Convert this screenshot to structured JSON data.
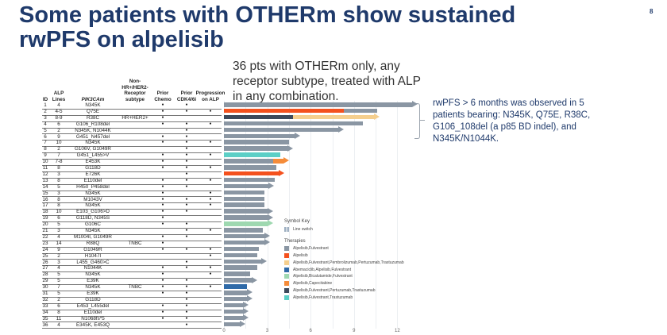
{
  "title": "Some patients with OTHERm show sustained rwPFS on alpelisib",
  "page_number": "8",
  "note": "36 pts with OTHERm only, any receptor subtype, treated with ALP in any combination.",
  "side_text": "rwPFS > 6 months was observed in 5 patients bearing: N345K, Q75E, R38C, G106_108del (a p85 BD indel), and N345K/N1044K.",
  "table": {
    "headers": [
      "ID",
      "ALP Lines",
      "PIK3CAm",
      "Non-HR+/HER2- Receptor subtype",
      "Prior Chemo",
      "Prior CDK4/6i",
      "Progression on ALP"
    ],
    "dot": "●",
    "rows": [
      {
        "id": "1",
        "lines": "4",
        "mut": "N345K",
        "rec": "",
        "chemo": true,
        "cdk": true,
        "prog": false
      },
      {
        "id": "2",
        "lines": "4-5",
        "mut": "Q75E",
        "rec": "",
        "chemo": true,
        "cdk": true,
        "prog": true
      },
      {
        "id": "3",
        "lines": "8-9",
        "mut": "R38C",
        "rec": "HR+HER2+",
        "chemo": true,
        "cdk": false,
        "prog": false
      },
      {
        "id": "4",
        "lines": "6",
        "mut": "G106_R108del",
        "rec": "",
        "chemo": true,
        "cdk": true,
        "prog": true
      },
      {
        "id": "5",
        "lines": "2",
        "mut": "N345K, N1044K",
        "rec": "",
        "chemo": false,
        "cdk": true,
        "prog": false
      },
      {
        "id": "6",
        "lines": "9",
        "mut": "G451_N457del",
        "rec": "",
        "chemo": true,
        "cdk": true,
        "prog": false
      },
      {
        "id": "7",
        "lines": "10",
        "mut": "N345K",
        "rec": "",
        "chemo": true,
        "cdk": true,
        "prog": true
      },
      {
        "id": "8",
        "lines": "2",
        "mut": "G106V, G1049R",
        "rec": "",
        "chemo": false,
        "cdk": true,
        "prog": false
      },
      {
        "id": "9",
        "lines": "7",
        "mut": "G451_L455>V",
        "rec": "",
        "chemo": true,
        "cdk": true,
        "prog": true
      },
      {
        "id": "10",
        "lines": "7-8",
        "mut": "E453K",
        "rec": "",
        "chemo": true,
        "cdk": true,
        "prog": false
      },
      {
        "id": "11",
        "lines": "8",
        "mut": "G118D",
        "rec": "",
        "chemo": true,
        "cdk": true,
        "prog": true
      },
      {
        "id": "12",
        "lines": "3",
        "mut": "E726K",
        "rec": "",
        "chemo": false,
        "cdk": true,
        "prog": false
      },
      {
        "id": "13",
        "lines": "8",
        "mut": "E110del",
        "rec": "",
        "chemo": true,
        "cdk": true,
        "prog": true
      },
      {
        "id": "14",
        "lines": "5",
        "mut": "H450_P458del",
        "rec": "",
        "chemo": true,
        "cdk": true,
        "prog": false
      },
      {
        "id": "15",
        "lines": "3",
        "mut": "N345K",
        "rec": "",
        "chemo": true,
        "cdk": false,
        "prog": true
      },
      {
        "id": "16",
        "lines": "8",
        "mut": "M1043V",
        "rec": "",
        "chemo": true,
        "cdk": true,
        "prog": true
      },
      {
        "id": "17",
        "lines": "8",
        "mut": "N345K",
        "rec": "",
        "chemo": true,
        "cdk": true,
        "prog": true
      },
      {
        "id": "18",
        "lines": "10",
        "mut": "E103_G106>D",
        "rec": "",
        "chemo": true,
        "cdk": true,
        "prog": false
      },
      {
        "id": "19",
        "lines": "6",
        "mut": "G118D, N345S",
        "rec": "",
        "chemo": true,
        "cdk": false,
        "prog": false
      },
      {
        "id": "20",
        "lines": "5",
        "mut": "G106C",
        "rec": "",
        "chemo": true,
        "cdk": true,
        "prog": false
      },
      {
        "id": "21",
        "lines": "3",
        "mut": "N345K",
        "rec": "",
        "chemo": false,
        "cdk": true,
        "prog": true
      },
      {
        "id": "22",
        "lines": "4",
        "mut": "M1004I, G1049R",
        "rec": "",
        "chemo": true,
        "cdk": true,
        "prog": false
      },
      {
        "id": "23",
        "lines": "14",
        "mut": "R88Q",
        "rec": "TNBC",
        "chemo": true,
        "cdk": false,
        "prog": false
      },
      {
        "id": "24",
        "lines": "9",
        "mut": "G1049R",
        "rec": "",
        "chemo": true,
        "cdk": true,
        "prog": true
      },
      {
        "id": "25",
        "lines": "2",
        "mut": "H1047I",
        "rec": "",
        "chemo": false,
        "cdk": false,
        "prog": true
      },
      {
        "id": "26",
        "lines": "3",
        "mut": "L455_G460>C",
        "rec": "",
        "chemo": false,
        "cdk": true,
        "prog": false
      },
      {
        "id": "27",
        "lines": "4",
        "mut": "N1044K",
        "rec": "",
        "chemo": true,
        "cdk": true,
        "prog": true
      },
      {
        "id": "28",
        "lines": "5",
        "mut": "N345K",
        "rec": "",
        "chemo": true,
        "cdk": false,
        "prog": true
      },
      {
        "id": "29",
        "lines": "5",
        "mut": "E39K",
        "rec": "",
        "chemo": true,
        "cdk": true,
        "prog": false
      },
      {
        "id": "30",
        "lines": "7",
        "mut": "N345K",
        "rec": "TNBC",
        "chemo": true,
        "cdk": true,
        "prog": true
      },
      {
        "id": "31",
        "lines": "5",
        "mut": "E39K",
        "rec": "",
        "chemo": true,
        "cdk": true,
        "prog": false
      },
      {
        "id": "32",
        "lines": "2",
        "mut": "G118D",
        "rec": "",
        "chemo": false,
        "cdk": true,
        "prog": false
      },
      {
        "id": "33",
        "lines": "6",
        "mut": "E453_L455del",
        "rec": "",
        "chemo": true,
        "cdk": true,
        "prog": false
      },
      {
        "id": "34",
        "lines": "8",
        "mut": "E110del",
        "rec": "",
        "chemo": true,
        "cdk": true,
        "prog": false
      },
      {
        "id": "35",
        "lines": "11",
        "mut": "N1068fs*5",
        "rec": "",
        "chemo": true,
        "cdk": true,
        "prog": false
      },
      {
        "id": "36",
        "lines": "4",
        "mut": "E345K, E453Q",
        "rec": "",
        "chemo": false,
        "cdk": true,
        "prog": false
      }
    ]
  },
  "chart_data": {
    "type": "bar",
    "orientation": "horizontal-swimmer",
    "xlim": [
      0,
      13
    ],
    "xticks": [
      "0",
      "3",
      "6",
      "9",
      "12"
    ],
    "grid": true,
    "legend_position": "bottom-center",
    "symbol_key_title": "Symbol Key",
    "symbol_key": "Line switch",
    "therapies_title": "Therapies",
    "therapies": [
      {
        "name": "Alpelisib,Fulvestrant",
        "color": "#8a96a3"
      },
      {
        "name": "Alpelisib",
        "color": "#f4511e"
      },
      {
        "name": "Alpelisib,Fulvestrant,Pembrolizumab,Pertuzumab,Trastuzumab",
        "color": "#f5cf8e"
      },
      {
        "name": "Abemaciclib,Alpelisib,Fulvestrant",
        "color": "#2f6aa8"
      },
      {
        "name": "Alpelisib,Bicalutamide,Fulvestrant",
        "color": "#9ed8b0"
      },
      {
        "name": "Alpelisib,Capecitabine",
        "color": "#f58c3a"
      },
      {
        "name": "Alpelisib,Fulvestrant,Pertuzumab,Trastuzumab",
        "color": "#3d4a5c"
      },
      {
        "name": "Alpelisib,Fulvestrant,Trastuzumab",
        "color": "#5ccfc6"
      }
    ],
    "bars": [
      {
        "segments": [
          [
            0,
            13,
            0
          ]
        ],
        "ongoing": true
      },
      {
        "segments": [
          [
            0,
            8.3,
            1
          ],
          [
            8.3,
            10.6,
            0
          ]
        ],
        "ongoing": false
      },
      {
        "segments": [
          [
            0,
            4.8,
            6
          ],
          [
            4.8,
            10.4,
            2
          ]
        ],
        "ongoing": true
      },
      {
        "segments": [
          [
            0,
            9.6,
            0
          ]
        ],
        "ongoing": false
      },
      {
        "segments": [
          [
            0,
            7.9,
            0
          ]
        ],
        "ongoing": true
      },
      {
        "segments": [
          [
            0,
            4.9,
            0
          ]
        ],
        "ongoing": true
      },
      {
        "segments": [
          [
            0,
            4.5,
            0
          ]
        ],
        "ongoing": false
      },
      {
        "segments": [
          [
            0,
            4.4,
            0
          ]
        ],
        "ongoing": true
      },
      {
        "segments": [
          [
            0,
            3.9,
            7
          ]
        ],
        "ongoing": false
      },
      {
        "segments": [
          [
            0,
            3.4,
            0
          ],
          [
            3.4,
            4.1,
            5
          ]
        ],
        "ongoing": true
      },
      {
        "segments": [
          [
            0,
            3.6,
            0
          ]
        ],
        "ongoing": false
      },
      {
        "segments": [
          [
            0,
            3.8,
            1
          ]
        ],
        "ongoing": true
      },
      {
        "segments": [
          [
            0,
            3.5,
            0
          ]
        ],
        "ongoing": false
      },
      {
        "segments": [
          [
            0,
            3.1,
            0
          ]
        ],
        "ongoing": true
      },
      {
        "segments": [
          [
            0,
            2.8,
            0
          ]
        ],
        "ongoing": false
      },
      {
        "segments": [
          [
            0,
            2.8,
            0
          ]
        ],
        "ongoing": false
      },
      {
        "segments": [
          [
            0,
            2.8,
            0
          ]
        ],
        "ongoing": false
      },
      {
        "segments": [
          [
            0,
            3.0,
            0
          ]
        ],
        "ongoing": true
      },
      {
        "segments": [
          [
            0,
            3.0,
            0
          ]
        ],
        "ongoing": true
      },
      {
        "segments": [
          [
            0,
            3.0,
            4
          ]
        ],
        "ongoing": true
      },
      {
        "segments": [
          [
            0,
            2.7,
            0
          ]
        ],
        "ongoing": false
      },
      {
        "segments": [
          [
            0,
            2.8,
            0
          ]
        ],
        "ongoing": true
      },
      {
        "segments": [
          [
            0,
            2.8,
            0
          ]
        ],
        "ongoing": true
      },
      {
        "segments": [
          [
            0,
            2.4,
            0
          ]
        ],
        "ongoing": false
      },
      {
        "segments": [
          [
            0,
            2.3,
            0
          ]
        ],
        "ongoing": false
      },
      {
        "segments": [
          [
            0,
            2.6,
            0
          ]
        ],
        "ongoing": true
      },
      {
        "segments": [
          [
            0,
            2.3,
            0
          ]
        ],
        "ongoing": false
      },
      {
        "segments": [
          [
            0,
            1.8,
            0
          ]
        ],
        "ongoing": false
      },
      {
        "segments": [
          [
            0,
            1.9,
            0
          ]
        ],
        "ongoing": true
      },
      {
        "segments": [
          [
            0,
            1.6,
            3
          ]
        ],
        "ongoing": false
      },
      {
        "segments": [
          [
            0,
            1.6,
            0
          ]
        ],
        "ongoing": true
      },
      {
        "segments": [
          [
            0,
            1.6,
            0
          ]
        ],
        "ongoing": true
      },
      {
        "segments": [
          [
            0,
            1.3,
            0
          ]
        ],
        "ongoing": true
      },
      {
        "segments": [
          [
            0,
            1.3,
            0
          ]
        ],
        "ongoing": true
      },
      {
        "segments": [
          [
            0,
            1.3,
            0
          ]
        ],
        "ongoing": true
      },
      {
        "segments": [
          [
            0,
            1.1,
            0
          ]
        ],
        "ongoing": true
      }
    ]
  }
}
